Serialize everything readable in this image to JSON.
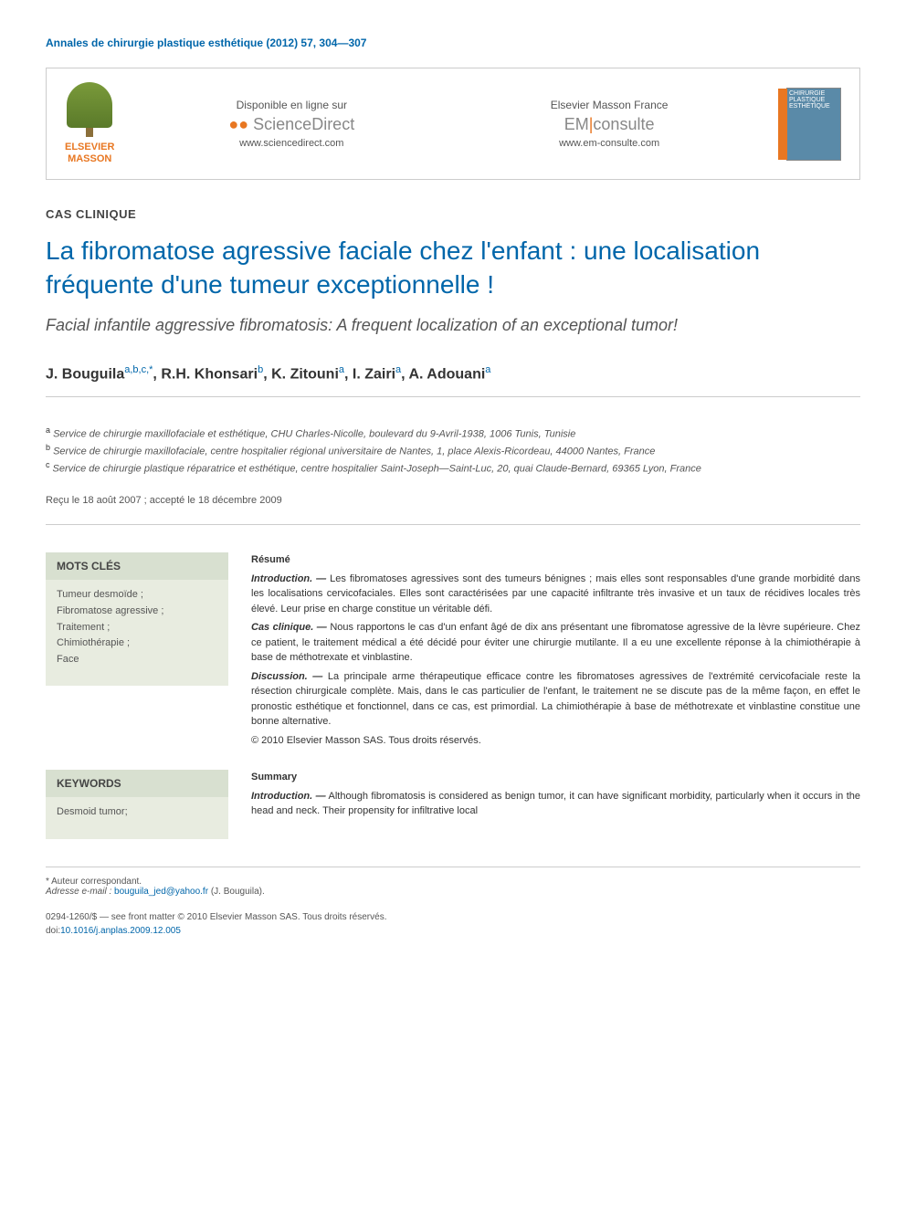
{
  "journal_ref": "Annales de chirurgie plastique esthétique (2012) 57, 304—307",
  "header": {
    "publisher_name": "ELSEVIER\nMASSON",
    "col1": {
      "tagline": "Disponible en ligne sur",
      "brand_html": "ScienceDirect",
      "url": "www.sciencedirect.com"
    },
    "col2": {
      "tagline": "Elsevier Masson France",
      "brand_prefix": "EM",
      "brand_suffix": "consulte",
      "url": "www.em-consulte.com"
    },
    "cover_text": "CHIRURGIE PLASTIQUE ESTHÉTIQUE"
  },
  "section_label": "CAS CLINIQUE",
  "title": "La fibromatose agressive faciale chez l'enfant : une localisation fréquente d'une tumeur exceptionnelle !",
  "subtitle": "Facial infantile aggressive fibromatosis: A frequent localization of an exceptional tumor!",
  "authors_raw": "J. Bouguila a,b,c,*, R.H. Khonsari b, K. Zitouni a, I. Zairi a, A. Adouani a",
  "authors": [
    {
      "name": "J. Bouguila",
      "affil": "a,b,c,*"
    },
    {
      "name": "R.H. Khonsari",
      "affil": "b"
    },
    {
      "name": "K. Zitouni",
      "affil": "a"
    },
    {
      "name": "I. Zairi",
      "affil": "a"
    },
    {
      "name": "A. Adouani",
      "affil": "a"
    }
  ],
  "affiliations": [
    {
      "sup": "a",
      "text": "Service de chirurgie maxillofaciale et esthétique, CHU Charles-Nicolle, boulevard du 9-Avril-1938, 1006 Tunis, Tunisie"
    },
    {
      "sup": "b",
      "text": "Service de chirurgie maxillofaciale, centre hospitalier régional universitaire de Nantes, 1, place Alexis-Ricordeau, 44000 Nantes, France"
    },
    {
      "sup": "c",
      "text": "Service de chirurgie plastique réparatrice et esthétique, centre hospitalier Saint-Joseph—Saint-Luc, 20, quai Claude-Bernard, 69365 Lyon, France"
    }
  ],
  "dates": "Reçu le 18 août 2007 ; accepté le 18 décembre 2009",
  "keywords_fr": {
    "heading": "MOTS CLÉS",
    "items": "Tumeur desmoïde ;\nFibromatose agressive ;\nTraitement ;\nChimiothérapie ;\nFace"
  },
  "keywords_en": {
    "heading": "KEYWORDS",
    "items": "Desmoid tumor;"
  },
  "resume": {
    "heading": "Résumé",
    "intro_label": "Introduction. —",
    "intro_text": "Les fibromatoses agressives sont des tumeurs bénignes ; mais elles sont responsables d'une grande morbidité dans les localisations cervicofaciales. Elles sont caractérisées par une capacité infiltrante très invasive et un taux de récidives locales très élevé. Leur prise en charge constitue un véritable défi.",
    "cas_label": "Cas clinique. —",
    "cas_text": "Nous rapportons le cas d'un enfant âgé de dix ans présentant une fibromatose agressive de la lèvre supérieure. Chez ce patient, le traitement médical a été décidé pour éviter une chirurgie mutilante. Il a eu une excellente réponse à la chimiothérapie à base de méthotrexate et vinblastine.",
    "disc_label": "Discussion. —",
    "disc_text": "La principale arme thérapeutique efficace contre les fibromatoses agressives de l'extrémité cervicofaciale reste la résection chirurgicale complète. Mais, dans le cas particulier de l'enfant, le traitement ne se discute pas de la même façon, en effet le pronostic esthétique et fonctionnel, dans ce cas, est primordial. La chimiothérapie à base de méthotrexate et vinblastine constitue une bonne alternative.",
    "copyright": "© 2010 Elsevier Masson SAS. Tous droits réservés."
  },
  "summary": {
    "heading": "Summary",
    "intro_label": "Introduction. —",
    "intro_text": "Although fibromatosis is considered as benign tumor, it can have significant morbidity, particularly when it occurs in the head and neck. Their propensity for infiltrative local"
  },
  "footer": {
    "corresp": "* Auteur correspondant.",
    "email_label": "Adresse e-mail :",
    "email": "bouguila_jed@yahoo.fr",
    "email_author": "(J. Bouguila).",
    "issn": "0294-1260/$ — see front matter © 2010 Elsevier Masson SAS. Tous droits réservés.",
    "doi_label": "doi:",
    "doi": "10.1016/j.anplas.2009.12.005"
  },
  "colors": {
    "link": "#0066aa",
    "orange": "#e87722",
    "kw_heading_bg": "#d8e0d0",
    "kw_content_bg": "#e8ece0"
  }
}
